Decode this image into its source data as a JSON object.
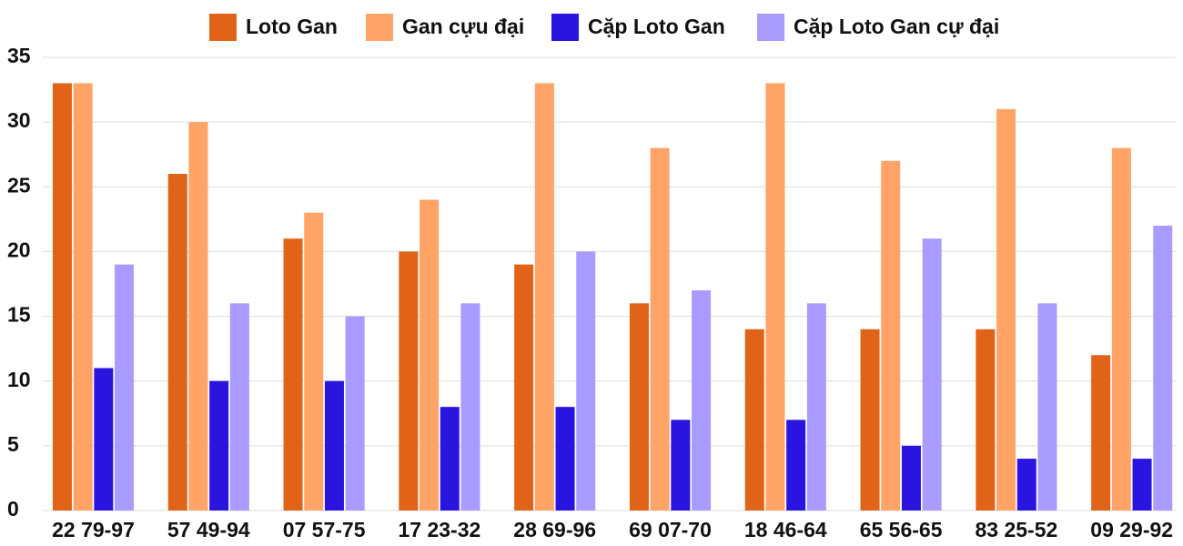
{
  "chart_data": {
    "type": "bar",
    "categories": [
      "22 79-97",
      "57 49-94",
      "07 57-75",
      "17 23-32",
      "28 69-96",
      "69 07-70",
      "18 46-64",
      "65 56-65",
      "83 25-52",
      "09 29-92"
    ],
    "series": [
      {
        "name": "Loto Gan",
        "color": "#e06317",
        "values": [
          33,
          26,
          21,
          20,
          19,
          16,
          14,
          14,
          14,
          12
        ]
      },
      {
        "name": "Gan cựu đại",
        "color": "#ffa366",
        "values": [
          33,
          30,
          23,
          24,
          33,
          28,
          33,
          27,
          31,
          28
        ]
      },
      {
        "name": "Cặp Loto Gan",
        "color": "#2a14e0",
        "values": [
          11,
          10,
          10,
          8,
          8,
          7,
          7,
          5,
          4,
          4
        ]
      },
      {
        "name": "Cặp Loto Gan cự đại",
        "color": "#a99bff",
        "values": [
          19,
          16,
          15,
          16,
          20,
          17,
          16,
          21,
          16,
          22
        ]
      }
    ],
    "ylim": [
      0,
      35
    ],
    "yticks": [
      0,
      5,
      10,
      15,
      20,
      25,
      30,
      35
    ],
    "grid": true,
    "legend": "top"
  }
}
